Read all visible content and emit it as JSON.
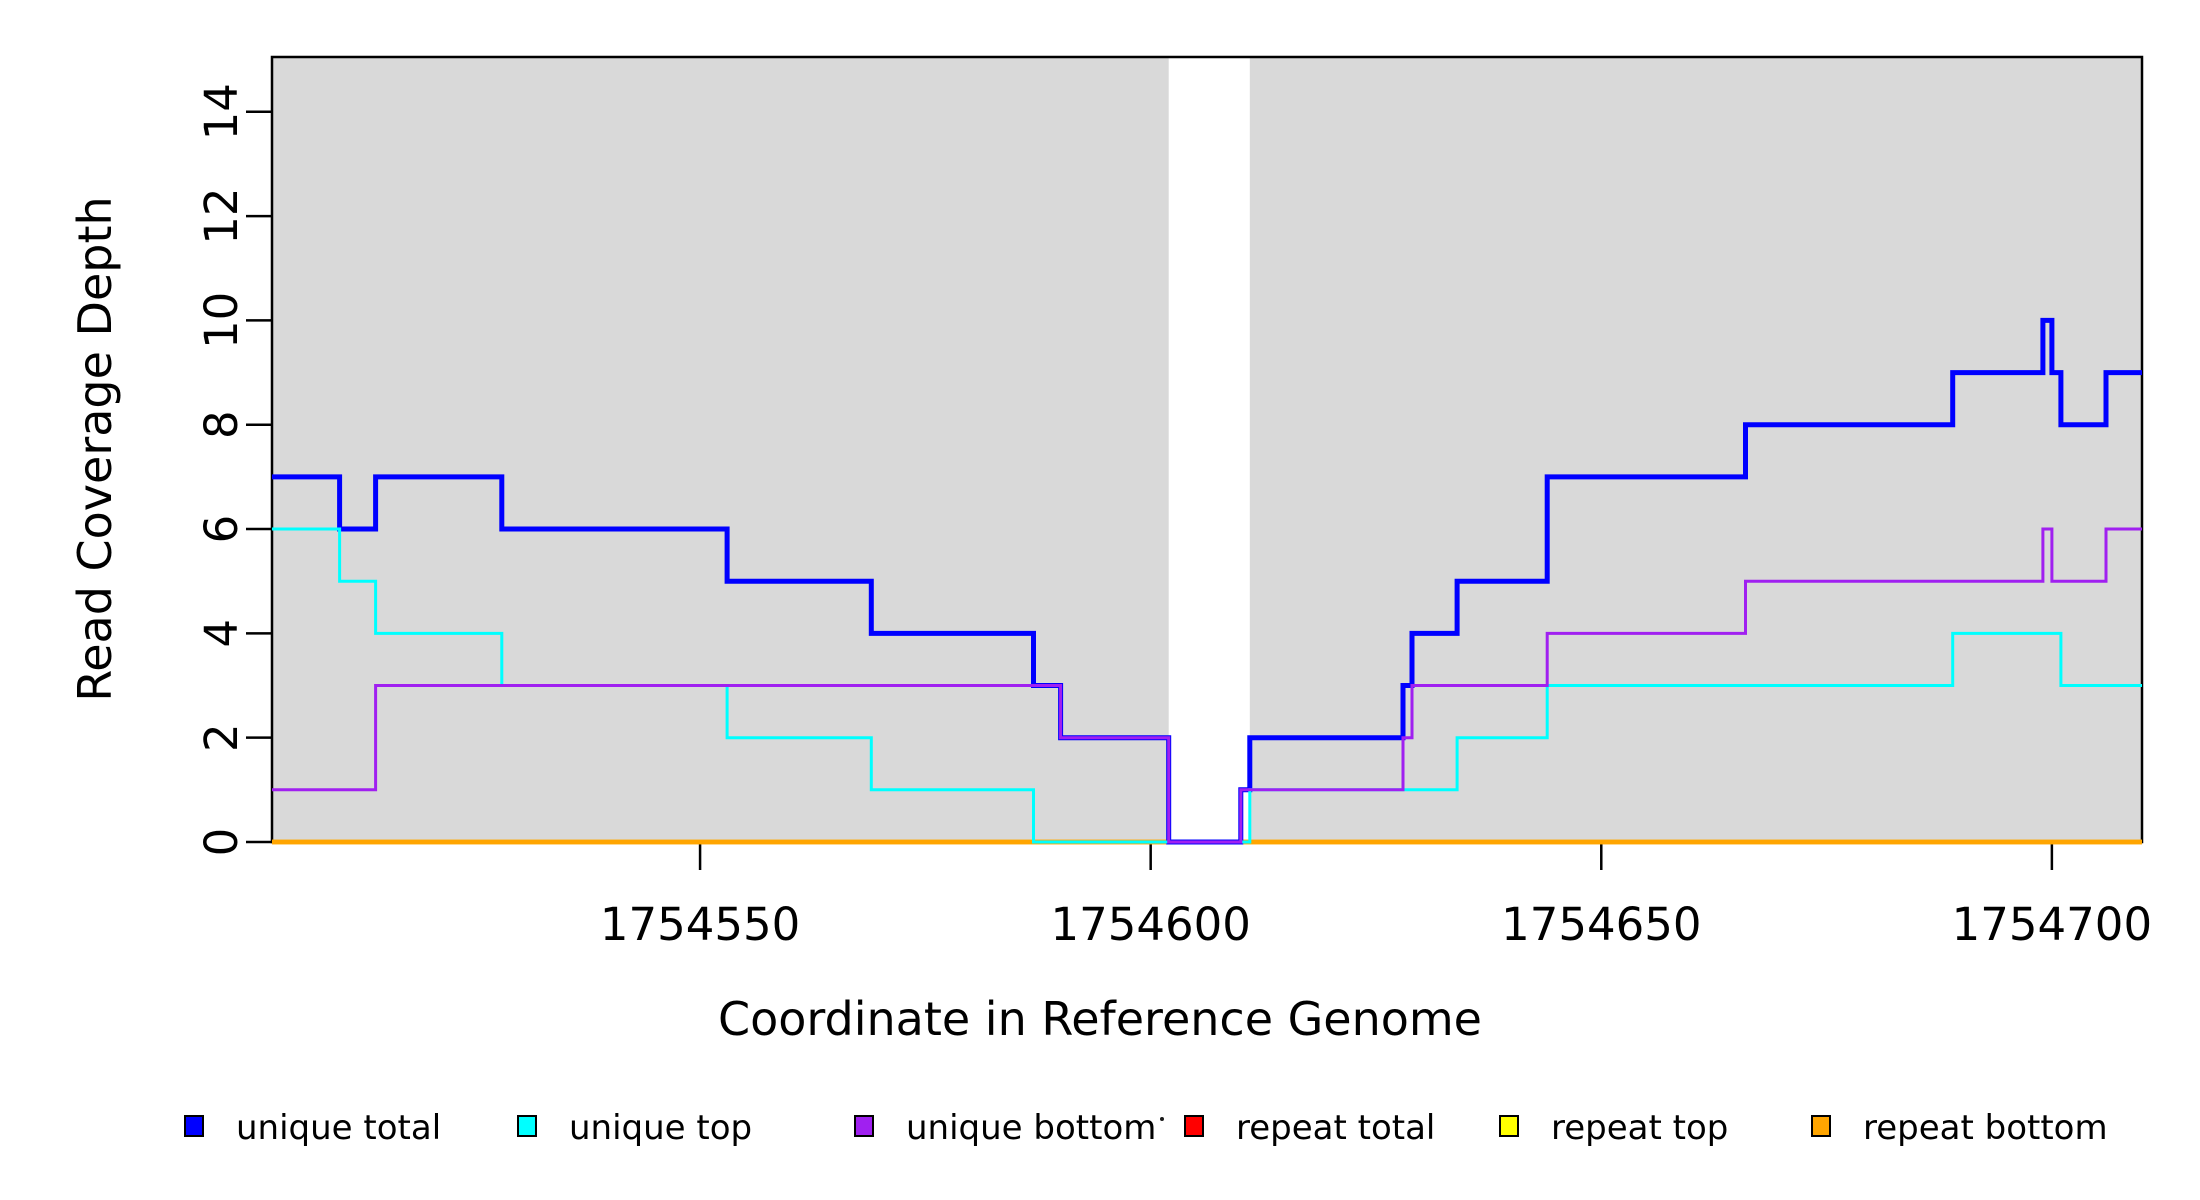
{
  "chart_data": {
    "type": "line",
    "subtype": "step-after",
    "title": "",
    "xlabel": "Coordinate in Reference Genome",
    "ylabel": "Read Coverage Depth",
    "xlim": [
      1754502.5,
      1754710
    ],
    "ylim": [
      0,
      15.05
    ],
    "xticks": [
      1754550,
      1754600,
      1754650,
      1754700
    ],
    "yticks": [
      0,
      2,
      4,
      6,
      8,
      10,
      12,
      14
    ],
    "grid": false,
    "plot_background": "#d9d9d9",
    "outer_background": "#ffffff",
    "zero_coverage_gap": {
      "from": 1754602,
      "to": 1754611,
      "color": "#ffffff"
    },
    "legend": {
      "position": "bottom",
      "items": [
        {
          "label": "unique total",
          "color": "#0000ff"
        },
        {
          "label": "unique top",
          "color": "#00ffff"
        },
        {
          "label": "unique bottom",
          "color": "#a020f0"
        },
        {
          "label": "repeat total",
          "color": "#ff0000"
        },
        {
          "label": "repeat top",
          "color": "#ffff00"
        },
        {
          "label": "repeat bottom",
          "color": "#ffa500"
        }
      ]
    },
    "series": [
      {
        "name": "repeat total",
        "color": "#ff0000",
        "line_width": 4.5,
        "start_value": 0,
        "changes": []
      },
      {
        "name": "repeat top",
        "color": "#ffff00",
        "line_width": 4.5,
        "start_value": 0,
        "changes": []
      },
      {
        "name": "repeat bottom",
        "color": "#ffa500",
        "line_width": 4.5,
        "start_value": 0,
        "changes": []
      },
      {
        "name": "unique total",
        "color": "#0000ff",
        "line_width": 5,
        "start_value": 7,
        "changes": [
          [
            1754510,
            6
          ],
          [
            1754514,
            7
          ],
          [
            1754528,
            6
          ],
          [
            1754553,
            5
          ],
          [
            1754569,
            4
          ],
          [
            1754587,
            3
          ],
          [
            1754590,
            2
          ],
          [
            1754602,
            0
          ],
          [
            1754610,
            1
          ],
          [
            1754611,
            2
          ],
          [
            1754628,
            3
          ],
          [
            1754629,
            4
          ],
          [
            1754634,
            5
          ],
          [
            1754644,
            7
          ],
          [
            1754666,
            8
          ],
          [
            1754689,
            9
          ],
          [
            1754699,
            10
          ],
          [
            1754700,
            9
          ],
          [
            1754701,
            8
          ],
          [
            1754706,
            9
          ]
        ]
      },
      {
        "name": "unique top",
        "color": "#00ffff",
        "line_width": 3,
        "start_value": 6,
        "changes": [
          [
            1754510,
            5
          ],
          [
            1754514,
            4
          ],
          [
            1754528,
            3
          ],
          [
            1754553,
            2
          ],
          [
            1754569,
            1
          ],
          [
            1754587,
            0
          ],
          [
            1754611,
            1
          ],
          [
            1754634,
            2
          ],
          [
            1754644,
            3
          ],
          [
            1754689,
            4
          ],
          [
            1754701,
            3
          ]
        ]
      },
      {
        "name": "unique bottom",
        "color": "#a020f0",
        "line_width": 3,
        "start_value": 1,
        "changes": [
          [
            1754514,
            3
          ],
          [
            1754590,
            2
          ],
          [
            1754602,
            0
          ],
          [
            1754610,
            1
          ],
          [
            1754628,
            2
          ],
          [
            1754629,
            3
          ],
          [
            1754644,
            4
          ],
          [
            1754666,
            5
          ],
          [
            1754699,
            6
          ],
          [
            1754700,
            5
          ],
          [
            1754706,
            6
          ]
        ]
      }
    ]
  }
}
